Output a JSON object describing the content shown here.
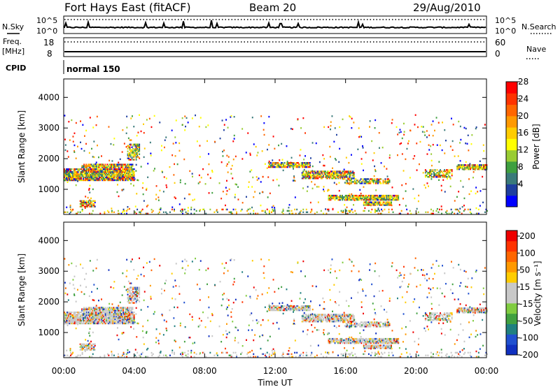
{
  "header": {
    "station": "Fort Hays East (fitACF)",
    "beam": "Beam 20",
    "date": "29/Aug/2010"
  },
  "nsky_panel": {
    "left_label": "N.Sky",
    "right_label": "N.Search",
    "left_ticks": [
      "10^5",
      "10^0"
    ],
    "right_ticks": [
      "10^5",
      "10^0"
    ]
  },
  "freq_panel": {
    "left_label_line1": "Freq.",
    "left_label_line2": "[MHz]",
    "left_ticks": [
      "18",
      "8"
    ],
    "right_label": "Nave",
    "right_ticks": [
      "60",
      "0"
    ]
  },
  "cpid_panel": {
    "label": "CPID",
    "mode": "normal 150"
  },
  "chart_data": [
    {
      "type": "heatmap",
      "name": "power",
      "ylabel": "Slant Range [km]",
      "yticks": [
        "1000",
        "2000",
        "3000",
        "4000"
      ],
      "ytick_values": [
        1000,
        2000,
        3000,
        4000
      ],
      "ylim": [
        180,
        4600
      ],
      "xlim_hours": [
        0,
        24
      ],
      "colorbar_label": "Power [dB]",
      "colorbar_ticks": [
        "4",
        "8",
        "12",
        "16",
        "20",
        "24",
        "28"
      ],
      "colorbar_colors": [
        "#0000ff",
        "#1f3f9f",
        "#3a7a7a",
        "#3f9f3f",
        "#99cc33",
        "#ffff00",
        "#ffcc00",
        "#ff9900",
        "#ff6600",
        "#ff3300",
        "#ff0000"
      ],
      "echo_regions": [
        {
          "t0": 0.0,
          "t1": 4.0,
          "r_center": 1450,
          "r_half": 180,
          "density": 0.9
        },
        {
          "t0": 1.0,
          "t1": 3.9,
          "r_center": 1750,
          "r_half": 60,
          "density": 0.8
        },
        {
          "t0": 0.9,
          "t1": 1.8,
          "r_center": 500,
          "r_half": 90,
          "density": 0.8
        },
        {
          "t0": 3.6,
          "t1": 4.3,
          "r_center": 2200,
          "r_half": 260,
          "density": 0.6
        },
        {
          "t0": 11.6,
          "t1": 14.0,
          "r_center": 1780,
          "r_half": 80,
          "density": 0.85
        },
        {
          "t0": 13.5,
          "t1": 16.5,
          "r_center": 1450,
          "r_half": 120,
          "density": 0.8
        },
        {
          "t0": 16.0,
          "t1": 18.5,
          "r_center": 1250,
          "r_half": 80,
          "density": 0.6
        },
        {
          "t0": 15.0,
          "t1": 19.0,
          "r_center": 700,
          "r_half": 70,
          "density": 0.85
        },
        {
          "t0": 17.0,
          "t1": 18.6,
          "r_center": 520,
          "r_half": 60,
          "density": 0.8
        },
        {
          "t0": 20.5,
          "t1": 22.0,
          "r_center": 1500,
          "r_half": 120,
          "density": 0.6
        },
        {
          "t0": 22.3,
          "t1": 24.0,
          "r_center": 1700,
          "r_half": 70,
          "density": 0.85
        },
        {
          "t0": 0.0,
          "t1": 24.0,
          "r_center": 260,
          "r_half": 80,
          "density": 0.15
        }
      ]
    },
    {
      "type": "heatmap",
      "name": "velocity",
      "ylabel": "Slant Range [km]",
      "yticks": [
        "1000",
        "2000",
        "3000",
        "4000"
      ],
      "ytick_values": [
        1000,
        2000,
        3000,
        4000
      ],
      "ylim": [
        180,
        4600
      ],
      "xlim_hours": [
        0,
        24
      ],
      "xticks": [
        "00:00",
        "04:00",
        "08:00",
        "12:00",
        "16:00",
        "20:00",
        "00:00"
      ],
      "xtick_hours": [
        0,
        4,
        8,
        12,
        16,
        20,
        24
      ],
      "xlabel": "Time UT",
      "colorbar_label": "Velocity [m s⁻¹]",
      "colorbar_ticks": [
        "200",
        "100",
        "50",
        "15",
        "-15",
        "-50",
        "-100",
        "-200"
      ],
      "colorbar_colors": [
        "#1030c0",
        "#2050d0",
        "#208080",
        "#40a040",
        "#80cc40",
        "#c8c8c8",
        "#c8c8c8",
        "#ffcc00",
        "#ff9900",
        "#ff6600",
        "#ff3300",
        "#ee0000"
      ]
    }
  ]
}
